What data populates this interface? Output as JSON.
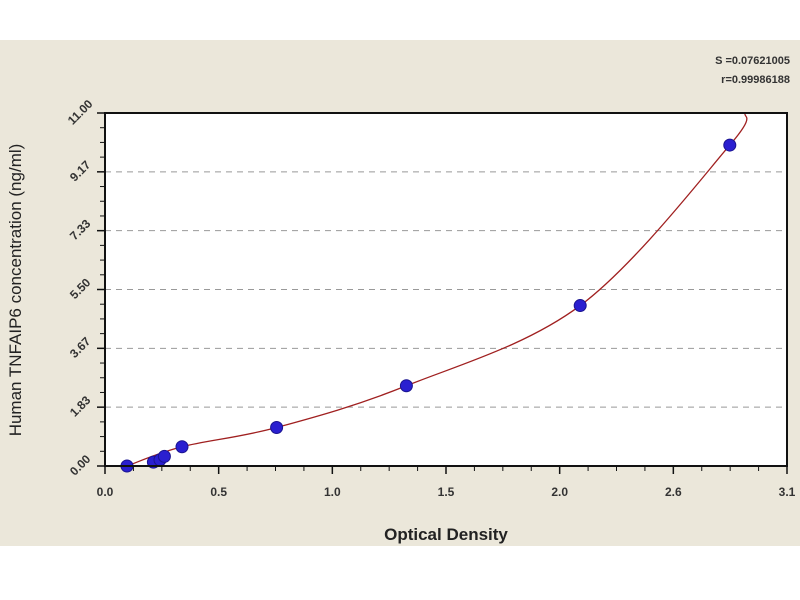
{
  "chart_data": {
    "type": "scatter",
    "xlabel": "Optical Density",
    "ylabel": "Human TNFAIP6 concentration (ng/ml)",
    "xlim": [
      0,
      3.1
    ],
    "ylim": [
      0,
      11.0
    ],
    "x_ticks": [
      "0.0",
      "0.5",
      "1.0",
      "1.5",
      "2.0",
      "2.6",
      "3.1"
    ],
    "y_ticks": [
      "0.00",
      "1.83",
      "3.67",
      "5.50",
      "7.33",
      "9.17",
      "11.00"
    ],
    "grid": "horizontal dashed",
    "points": [
      {
        "x": 0.1,
        "y": 0.0
      },
      {
        "x": 0.22,
        "y": 0.12
      },
      {
        "x": 0.25,
        "y": 0.19
      },
      {
        "x": 0.27,
        "y": 0.3
      },
      {
        "x": 0.35,
        "y": 0.6
      },
      {
        "x": 0.78,
        "y": 1.2
      },
      {
        "x": 1.37,
        "y": 2.5
      },
      {
        "x": 2.16,
        "y": 5.0
      },
      {
        "x": 2.84,
        "y": 10.0
      }
    ],
    "fit_curve": "smooth curve through standards",
    "annotations": {
      "s": "S =0.07621005",
      "r": "r=0.99986188"
    },
    "colors": {
      "points": "#2a1fd0",
      "curve": "#a02020",
      "grid": "#999999",
      "background": "#ebe7da"
    }
  }
}
